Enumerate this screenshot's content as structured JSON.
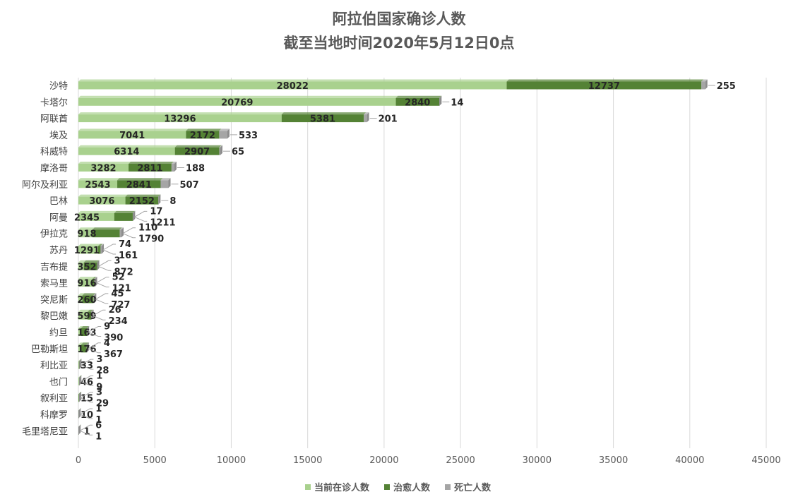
{
  "chart_data": {
    "type": "bar",
    "orientation": "horizontal",
    "stacked": true,
    "title": "阿拉伯国家确诊人数",
    "subtitle": "截至当地时间2020年5月12日0点",
    "categories": [
      "沙特",
      "卡塔尔",
      "阿联酋",
      "埃及",
      "科威特",
      "摩洛哥",
      "阿尔及利亚",
      "巴林",
      "阿曼",
      "伊拉克",
      "苏丹",
      "吉布提",
      "索马里",
      "突尼斯",
      "黎巴嫩",
      "约旦",
      "巴勒斯坦",
      "利比亚",
      "也门",
      "叙利亚",
      "科摩罗",
      "毛里塔尼亚"
    ],
    "series": [
      {
        "name": "当前在诊人数",
        "color": "#a9d18e",
        "values": [
          28022,
          20769,
          13296,
          7041,
          6314,
          3282,
          2543,
          3076,
          2345,
          918,
          1291,
          352,
          916,
          260,
          599,
          163,
          176,
          33,
          46,
          15,
          10,
          1
        ]
      },
      {
        "name": "治愈人数",
        "color": "#548235",
        "values": [
          12737,
          2840,
          5381,
          2172,
          2907,
          2811,
          2841,
          2152,
          1211,
          1790,
          161,
          872,
          121,
          727,
          234,
          390,
          367,
          28,
          9,
          29,
          1,
          1
        ]
      },
      {
        "name": "死亡人数",
        "color": "#a5a5a5",
        "values": [
          255,
          14,
          201,
          533,
          65,
          188,
          507,
          8,
          17,
          110,
          74,
          3,
          52,
          45,
          26,
          9,
          4,
          3,
          1,
          3,
          1,
          6
        ]
      }
    ],
    "xlim": [
      0,
      45000
    ],
    "xticks": [
      "0",
      "5000",
      "10000",
      "15000",
      "20000",
      "25000",
      "30000",
      "35000",
      "40000",
      "45000"
    ],
    "grid": true,
    "legend_position": "bottom"
  }
}
